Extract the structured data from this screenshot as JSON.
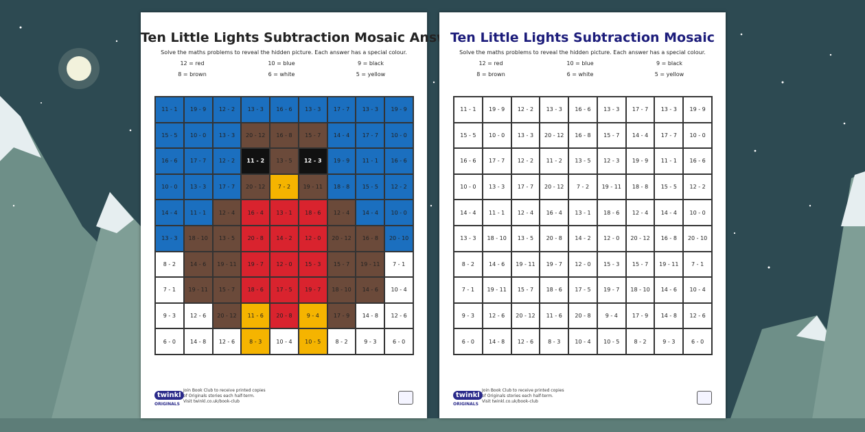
{
  "sheets": [
    {
      "title": "Ten Little Lights Subtraction Mosaic Answers",
      "instructions": "Solve the maths problems to reveal the hidden picture. Each answer has a special colour.",
      "key": [
        "12 = red",
        "10 = blue",
        "9 = black",
        "8 = brown",
        "6 = white",
        "5 = yellow"
      ],
      "rows": [
        [
          "11 - 1",
          "19 - 9",
          "12 - 2",
          "13 - 3",
          "16 - 6",
          "13 - 3",
          "17 - 7",
          "13 - 3",
          "19 - 9"
        ],
        [
          "15 - 5",
          "10 - 0",
          "13 - 3",
          "20 - 12",
          "16 - 8",
          "15 - 7",
          "14 - 4",
          "17 - 7",
          "10 - 0"
        ],
        [
          "16 - 6",
          "17 - 7",
          "12 - 2",
          "11 - 2",
          "13 - 5",
          "12 - 3",
          "19 - 9",
          "11 - 1",
          "16 - 6"
        ],
        [
          "10 - 0",
          "13 - 3",
          "17 - 7",
          "20 - 12",
          "7 - 2",
          "19 - 11",
          "18 - 8",
          "15 - 5",
          "12 - 2"
        ],
        [
          "14 - 4",
          "11 - 1",
          "12 - 4",
          "16 - 4",
          "13 - 1",
          "18 - 6",
          "12 - 4",
          "14 - 4",
          "10 - 0"
        ],
        [
          "13 - 3",
          "18 - 10",
          "13 - 5",
          "20 - 8",
          "14 - 2",
          "12 - 0",
          "20 - 12",
          "16 - 8",
          "20 - 10"
        ],
        [
          "8 - 2",
          "14 - 6",
          "19 - 11",
          "19 - 7",
          "12 - 0",
          "15 - 3",
          "15 - 7",
          "19 - 11",
          "7 - 1"
        ],
        [
          "7 - 1",
          "19 - 11",
          "15 - 7",
          "18 - 6",
          "17 - 5",
          "19 - 7",
          "18 - 10",
          "14 - 6",
          "10 - 4"
        ],
        [
          "9 - 3",
          "12 - 6",
          "20 - 12",
          "11 - 6",
          "20 - 8",
          "9 - 4",
          "17 - 9",
          "14 - 8",
          "12 - 6"
        ],
        [
          "6 - 0",
          "14 - 8",
          "12 - 6",
          "8 - 3",
          "10 - 4",
          "10 - 5",
          "8 - 2",
          "9 - 3",
          "6 - 0"
        ]
      ],
      "cell_colors": [
        [
          "#1b6fbf",
          "#1b6fbf",
          "#1b6fbf",
          "#1b6fbf",
          "#1b6fbf",
          "#1b6fbf",
          "#1b6fbf",
          "#1b6fbf",
          "#1b6fbf"
        ],
        [
          "#1b6fbf",
          "#1b6fbf",
          "#1b6fbf",
          "#6b4a3a",
          "#6b4a3a",
          "#6b4a3a",
          "#1b6fbf",
          "#1b6fbf",
          "#1b6fbf"
        ],
        [
          "#1b6fbf",
          "#1b6fbf",
          "#1b6fbf",
          "#111111",
          "#6b4a3a",
          "#111111",
          "#1b6fbf",
          "#1b6fbf",
          "#1b6fbf"
        ],
        [
          "#1b6fbf",
          "#1b6fbf",
          "#1b6fbf",
          "#6b4a3a",
          "#f5b400",
          "#6b4a3a",
          "#1b6fbf",
          "#1b6fbf",
          "#1b6fbf"
        ],
        [
          "#1b6fbf",
          "#1b6fbf",
          "#6b4a3a",
          "#d9232e",
          "#d9232e",
          "#d9232e",
          "#6b4a3a",
          "#1b6fbf",
          "#1b6fbf"
        ],
        [
          "#1b6fbf",
          "#6b4a3a",
          "#6b4a3a",
          "#d9232e",
          "#d9232e",
          "#d9232e",
          "#6b4a3a",
          "#6b4a3a",
          "#1b6fbf"
        ],
        [
          "#ffffff",
          "#6b4a3a",
          "#6b4a3a",
          "#d9232e",
          "#d9232e",
          "#d9232e",
          "#6b4a3a",
          "#6b4a3a",
          "#ffffff"
        ],
        [
          "#ffffff",
          "#6b4a3a",
          "#6b4a3a",
          "#d9232e",
          "#d9232e",
          "#d9232e",
          "#6b4a3a",
          "#6b4a3a",
          "#ffffff"
        ],
        [
          "#ffffff",
          "#ffffff",
          "#6b4a3a",
          "#f5b400",
          "#d9232e",
          "#f5b400",
          "#6b4a3a",
          "#ffffff",
          "#ffffff"
        ],
        [
          "#ffffff",
          "#ffffff",
          "#ffffff",
          "#f5b400",
          "#ffffff",
          "#f5b400",
          "#ffffff",
          "#ffffff",
          "#ffffff"
        ]
      ],
      "footer": [
        "Join Book Club to receive printed copies",
        "of Originals stories each half-term.",
        "Visit twinkl.co.uk/book-club"
      ],
      "logo": "twinkl",
      "logo_sub": "ORIGINALS",
      "title_color": "#222222"
    },
    {
      "title": "Ten Little Lights Subtraction Mosaic",
      "instructions": "Solve the maths problems to reveal the hidden picture. Each answer has a special colour.",
      "key": [
        "12 = red",
        "10 = blue",
        "9 = black",
        "8 = brown",
        "6 = white",
        "5 = yellow"
      ],
      "rows": [
        [
          "11 - 1",
          "19 - 9",
          "12 - 2",
          "13 - 3",
          "16 - 6",
          "13 - 3",
          "17 - 7",
          "13 - 3",
          "19 - 9"
        ],
        [
          "15 - 5",
          "10 - 0",
          "13 - 3",
          "20 - 12",
          "16 - 8",
          "15 - 7",
          "14 - 4",
          "17 - 7",
          "10 - 0"
        ],
        [
          "16 - 6",
          "17 - 7",
          "12 - 2",
          "11 - 2",
          "13 - 5",
          "12 - 3",
          "19 - 9",
          "11 - 1",
          "16 - 6"
        ],
        [
          "10 - 0",
          "13 - 3",
          "17 - 7",
          "20 - 12",
          "7 - 2",
          "19 - 11",
          "18 - 8",
          "15 - 5",
          "12 - 2"
        ],
        [
          "14 - 4",
          "11 - 1",
          "12 - 4",
          "16 - 4",
          "13 - 1",
          "18 - 6",
          "12 - 4",
          "14 - 4",
          "10 - 0"
        ],
        [
          "13 - 3",
          "18 - 10",
          "13 - 5",
          "20 - 8",
          "14 - 2",
          "12 - 0",
          "20 - 12",
          "16 - 8",
          "20 - 10"
        ],
        [
          "8 - 2",
          "14 - 6",
          "19 - 11",
          "19 - 7",
          "12 - 0",
          "15 - 3",
          "15 - 7",
          "19 - 11",
          "7 - 1"
        ],
        [
          "7 - 1",
          "19 - 11",
          "15 - 7",
          "18 - 6",
          "17 - 5",
          "19 - 7",
          "18 - 10",
          "14 - 6",
          "10 - 4"
        ],
        [
          "9 - 3",
          "12 - 6",
          "20 - 12",
          "11 - 6",
          "20 - 8",
          "9 - 4",
          "17 - 9",
          "14 - 8",
          "12 - 6"
        ],
        [
          "6 - 0",
          "14 - 8",
          "12 - 6",
          "8 - 3",
          "10 - 4",
          "10 - 5",
          "8 - 2",
          "9 - 3",
          "6 - 0"
        ]
      ],
      "footer": [
        "Join Book Club to receive printed copies",
        "of Originals stories each half-term.",
        "Visit twinkl.co.uk/book-club"
      ],
      "logo": "twinkl",
      "logo_sub": "ORIGINALS",
      "title_color": "#1b1b7a"
    }
  ]
}
